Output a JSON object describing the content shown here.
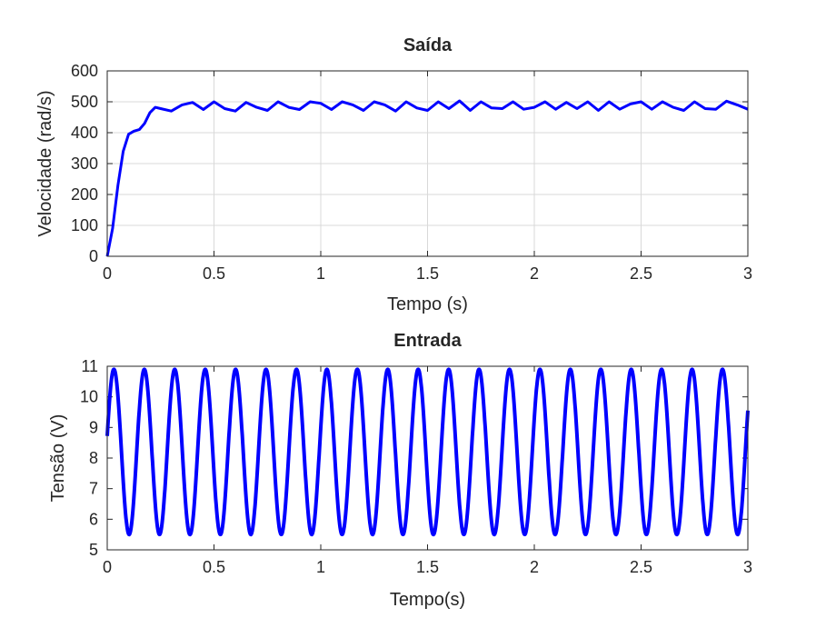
{
  "chart_data": [
    {
      "type": "line",
      "title": "Saída",
      "xlabel": "Tempo (s)",
      "ylabel": "Velocidade (rad/s)",
      "xlim": [
        0,
        3
      ],
      "ylim": [
        0,
        600
      ],
      "xticks": [
        0,
        0.5,
        1,
        1.5,
        2,
        2.5,
        3
      ],
      "xtick_labels": [
        "0",
        "0.5",
        "1",
        "1.5",
        "2",
        "2.5",
        "3"
      ],
      "yticks": [
        0,
        100,
        200,
        300,
        400,
        500,
        600
      ],
      "ytick_labels": [
        "0",
        "100",
        "200",
        "300",
        "400",
        "500",
        "600"
      ],
      "grid": true,
      "line_color": "#0000ff",
      "series": [
        {
          "name": "Velocidade",
          "x": [
            0,
            0.025,
            0.05,
            0.075,
            0.1,
            0.125,
            0.15,
            0.175,
            0.2,
            0.225,
            0.25,
            0.3,
            0.35,
            0.4,
            0.45,
            0.5,
            0.55,
            0.6,
            0.65,
            0.7,
            0.75,
            0.8,
            0.85,
            0.9,
            0.95,
            1.0,
            1.05,
            1.1,
            1.15,
            1.2,
            1.25,
            1.3,
            1.35,
            1.4,
            1.45,
            1.5,
            1.55,
            1.6,
            1.65,
            1.7,
            1.75,
            1.8,
            1.85,
            1.9,
            1.95,
            2.0,
            2.05,
            2.1,
            2.15,
            2.2,
            2.25,
            2.3,
            2.35,
            2.4,
            2.45,
            2.5,
            2.55,
            2.6,
            2.65,
            2.7,
            2.75,
            2.8,
            2.85,
            2.9,
            2.95,
            3.0
          ],
          "y": [
            0,
            90,
            230,
            340,
            395,
            405,
            410,
            430,
            465,
            482,
            478,
            470,
            490,
            498,
            475,
            500,
            478,
            470,
            498,
            482,
            472,
            500,
            482,
            475,
            500,
            495,
            475,
            500,
            490,
            472,
            500,
            490,
            470,
            500,
            480,
            472,
            500,
            478,
            503,
            472,
            500,
            480,
            478,
            500,
            476,
            482,
            500,
            476,
            498,
            478,
            500,
            472,
            500,
            476,
            493,
            500,
            476,
            500,
            482,
            472,
            500,
            478,
            476,
            502,
            490,
            476
          ]
        }
      ]
    },
    {
      "type": "line",
      "title": "Entrada",
      "xlabel": "Tempo(s)",
      "ylabel": "Tensão (V)",
      "xlim": [
        0,
        3
      ],
      "ylim": [
        5,
        11
      ],
      "xticks": [
        0,
        0.5,
        1,
        1.5,
        2,
        2.5,
        3
      ],
      "xtick_labels": [
        "0",
        "0.5",
        "1",
        "1.5",
        "2",
        "2.5",
        "3"
      ],
      "yticks": [
        5,
        6,
        7,
        8,
        9,
        10,
        11
      ],
      "ytick_labels": [
        "5",
        "6",
        "7",
        "8",
        "9",
        "10",
        "11"
      ],
      "grid": false,
      "line_color": "#0000ff",
      "series": [
        {
          "name": "Tensão",
          "function": "sinusoid",
          "offset": 8.2,
          "amplitude": 2.7,
          "period": 0.1425,
          "phase_offset_s": -0.0044,
          "x_range": [
            0,
            3
          ]
        }
      ]
    }
  ]
}
